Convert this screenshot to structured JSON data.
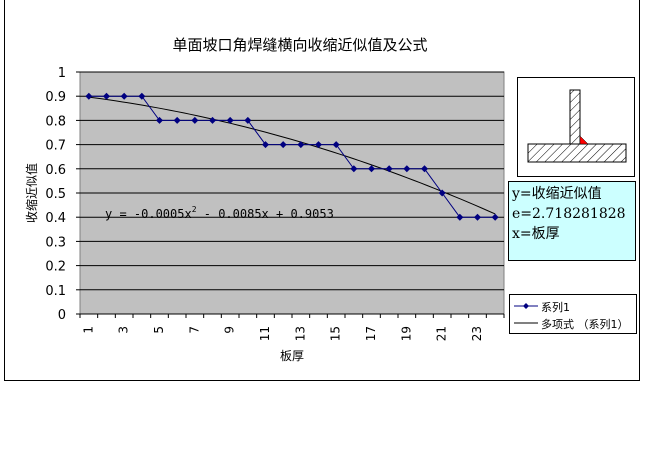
{
  "chart_data": {
    "type": "line",
    "title": "单面坡口角焊缝横向收缩近似值及公式",
    "xlabel": "板厚",
    "ylabel": "收缩近似值",
    "ylim": [
      0,
      1
    ],
    "yticks": [
      "0",
      "0.1",
      "0.2",
      "0.3",
      "0.4",
      "0.5",
      "0.6",
      "0.7",
      "0.8",
      "0.9",
      "1"
    ],
    "xticks": [
      "1",
      "3",
      "5",
      "7",
      "9",
      "11",
      "13",
      "15",
      "17",
      "19",
      "21",
      "23"
    ],
    "x": [
      1,
      2,
      3,
      4,
      5,
      6,
      7,
      8,
      9,
      10,
      11,
      12,
      13,
      14,
      15,
      16,
      17,
      18,
      19,
      20,
      21,
      22,
      23,
      24
    ],
    "series": [
      {
        "name": "系列1",
        "values": [
          0.9,
          0.9,
          0.9,
          0.9,
          0.8,
          0.8,
          0.8,
          0.8,
          0.8,
          0.8,
          0.7,
          0.7,
          0.7,
          0.7,
          0.7,
          0.6,
          0.6,
          0.6,
          0.6,
          0.6,
          0.5,
          0.4,
          0.4,
          0.4
        ],
        "color": "#000080"
      }
    ],
    "trendline": {
      "name": "多项式 （系列1）",
      "equation": "y = -0.0005x² - 0.0085x + 0.9053",
      "coefficients": [
        -0.0005,
        -0.0085,
        0.9053
      ],
      "color": "#000000"
    },
    "equation_label": {
      "prefix": "y = -0.0005x",
      "sup": "2",
      "suffix": " - 0.0085x + 0.9053"
    },
    "plot_bg": "#c0c0c0",
    "grid": true,
    "legend_position": "right"
  },
  "formula_box": {
    "line1": "y=收缩近似值",
    "line2": "e=2.718281828",
    "line3": "x=板厚",
    "bg": "#ccffff"
  },
  "legend": {
    "series_label": "系列1",
    "trend_label": "多项式 （系列1）"
  }
}
